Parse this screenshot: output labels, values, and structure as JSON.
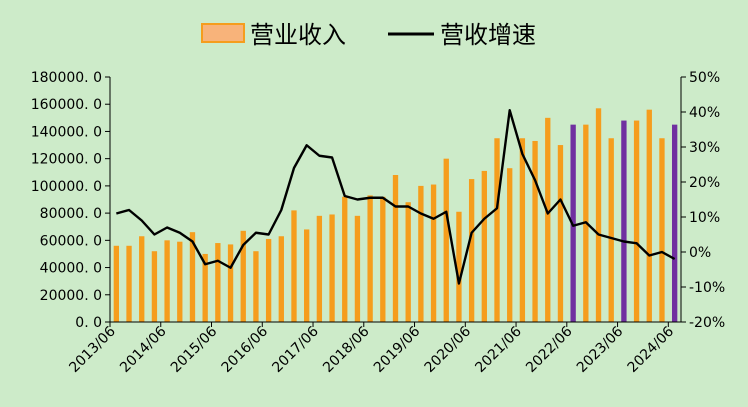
{
  "chart_data": {
    "type": "bar",
    "legend": {
      "position": "top"
    },
    "series": [
      {
        "name": "营业收入",
        "kind": "bar",
        "axis": "left",
        "color": "#f59d1d"
      },
      {
        "name": "营收增速",
        "kind": "line",
        "axis": "right",
        "color": "#000000"
      }
    ],
    "highlight_color": "#7030a0",
    "x_tick_labels": [
      "2013/06",
      "2014/06",
      "2015/06",
      "2016/06",
      "2017/06",
      "2018/06",
      "2019/06",
      "2020/06",
      "2021/06",
      "2022/06",
      "2023/06",
      "2024/06"
    ],
    "y_left": {
      "min": 0,
      "max": 180000,
      "ticks": [
        "0. 0",
        "20000. 0",
        "40000. 0",
        "60000. 0",
        "80000. 0",
        "100000. 0",
        "120000. 0",
        "140000. 0",
        "160000. 0",
        "180000. 0"
      ]
    },
    "y_right": {
      "min": -20,
      "max": 50,
      "ticks": [
        "-20%",
        "-10%",
        "0%",
        "10%",
        "20%",
        "30%",
        "40%",
        "50%"
      ]
    },
    "bars": [
      {
        "v": 56000
      },
      {
        "v": 56000
      },
      {
        "v": 63000
      },
      {
        "v": 52000
      },
      {
        "v": 60000
      },
      {
        "v": 59000
      },
      {
        "v": 66000
      },
      {
        "v": 50000
      },
      {
        "v": 58000
      },
      {
        "v": 57000
      },
      {
        "v": 67000
      },
      {
        "v": 52000
      },
      {
        "v": 61000
      },
      {
        "v": 63000
      },
      {
        "v": 82000
      },
      {
        "v": 68000
      },
      {
        "v": 78000
      },
      {
        "v": 79000
      },
      {
        "v": 92000
      },
      {
        "v": 78000
      },
      {
        "v": 93000
      },
      {
        "v": 92000
      },
      {
        "v": 108000
      },
      {
        "v": 88000
      },
      {
        "v": 100000
      },
      {
        "v": 101000
      },
      {
        "v": 120000
      },
      {
        "v": 81000
      },
      {
        "v": 105000
      },
      {
        "v": 111000
      },
      {
        "v": 135000
      },
      {
        "v": 113000
      },
      {
        "v": 135000
      },
      {
        "v": 133000
      },
      {
        "v": 150000
      },
      {
        "v": 130000
      },
      {
        "v": 145000,
        "highlight": true
      },
      {
        "v": 145000
      },
      {
        "v": 157000
      },
      {
        "v": 135000
      },
      {
        "v": 148000,
        "highlight": true
      },
      {
        "v": 148000
      },
      {
        "v": 156000
      },
      {
        "v": 135000
      },
      {
        "v": 145000,
        "highlight": true
      }
    ],
    "growth_pct": [
      11,
      12,
      9,
      5,
      7,
      5.5,
      3,
      -3.5,
      -2.5,
      -4.5,
      2,
      5.5,
      5,
      12,
      24,
      30.5,
      27.5,
      27,
      16,
      15,
      15.5,
      15.5,
      13,
      13,
      11,
      9.5,
      11.5,
      -9,
      5.5,
      9.5,
      12.5,
      40.5,
      28,
      20.5,
      11,
      15,
      7.5,
      8.5,
      5,
      4,
      3,
      2.5,
      -1,
      0,
      -2
    ]
  }
}
